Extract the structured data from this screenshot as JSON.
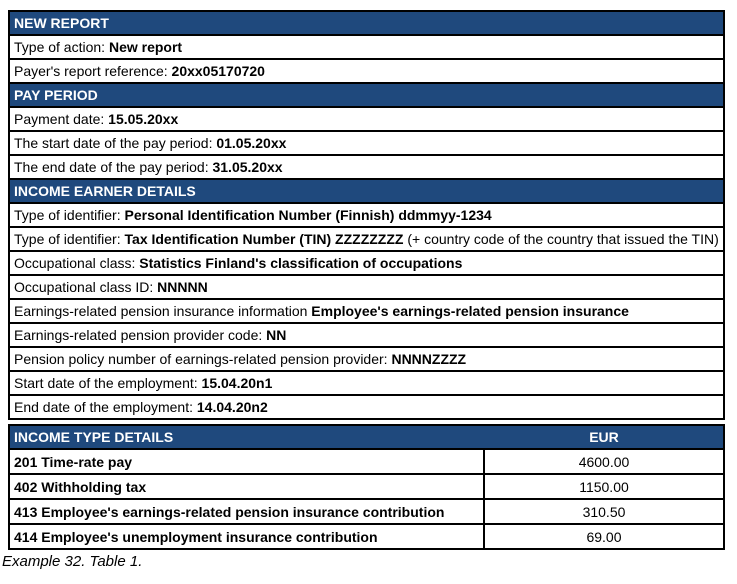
{
  "colors": {
    "header_bg": "#1F497D",
    "header_text": "#FFFFFF",
    "border": "#000000",
    "row_bg": "#FFFFFF",
    "text": "#000000"
  },
  "report": {
    "rows": [
      {
        "type": "section",
        "text": "NEW REPORT"
      },
      {
        "type": "field",
        "label": "Type of action: ",
        "value": "New report"
      },
      {
        "type": "field",
        "label": "Payer's report reference: ",
        "value": "20xx05170720"
      },
      {
        "type": "section",
        "text": "PAY PERIOD"
      },
      {
        "type": "field",
        "label": "Payment date: ",
        "value": "15.05.20xx"
      },
      {
        "type": "field",
        "label": "The start date of the pay period: ",
        "value": "01.05.20xx"
      },
      {
        "type": "field",
        "label": "The end date of the pay period: ",
        "value": "31.05.20xx"
      },
      {
        "type": "section",
        "text": "INCOME EARNER DETAILS"
      },
      {
        "type": "field",
        "label": "Type of identifier: ",
        "value": "Personal Identification Number (Finnish) ddmmyy-1234"
      },
      {
        "type": "field",
        "label": "Type of identifier: ",
        "value": "Tax Identification Number (TIN) ZZZZZZZZ",
        "suffix": " (+ country code of the country that issued the TIN)"
      },
      {
        "type": "field",
        "label": "Occupational class: ",
        "value": "Statistics Finland's classification of occupations"
      },
      {
        "type": "field",
        "label": "Occupational class ID: ",
        "value": "NNNNN"
      },
      {
        "type": "field",
        "label": "Earnings-related pension insurance information ",
        "value": "Employee's earnings-related pension insurance"
      },
      {
        "type": "field",
        "label": "Earnings-related pension provider code: ",
        "value": "NN"
      },
      {
        "type": "field",
        "label": "Pension policy number of earnings-related pension provider: ",
        "value": "NNNNZZZZ"
      },
      {
        "type": "field",
        "label": "Start date of the employment: ",
        "value": "15.04.20n1"
      },
      {
        "type": "field",
        "label": "End date of the employment: ",
        "value": "14.04.20n2"
      }
    ]
  },
  "income_table": {
    "title": "INCOME TYPE DETAILS",
    "currency_label": "EUR",
    "rows": [
      {
        "item": "201 Time-rate pay",
        "amount": "4600.00"
      },
      {
        "item": "402 Withholding tax",
        "amount": "1150.00"
      },
      {
        "item": "413 Employee's earnings-related pension insurance contribution",
        "amount": "310.50"
      },
      {
        "item": "414 Employee's unemployment insurance contribution",
        "amount": "69.00"
      }
    ]
  },
  "caption": "Example 32. Table 1."
}
